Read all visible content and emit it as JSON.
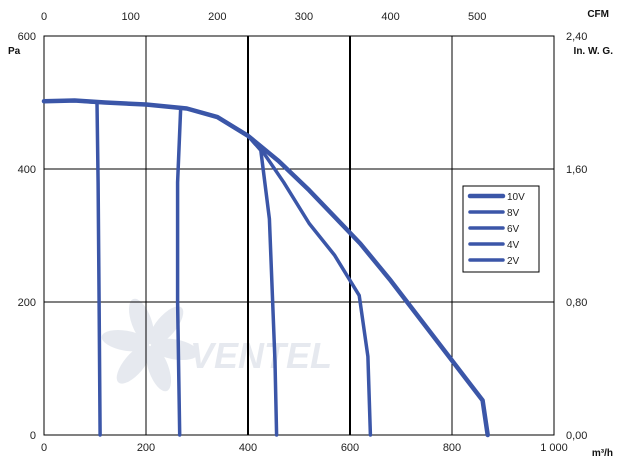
{
  "chart_data": {
    "type": "line",
    "units": {
      "x_bottom": "m³/h",
      "x_top": "CFM",
      "y_left": "Pa",
      "y_right": "In. W. G."
    },
    "watermark": "VENTEL",
    "x_bottom_ticks": [
      "0",
      "200",
      "400",
      "600",
      "800",
      "1 000"
    ],
    "x_top_ticks": [
      "0",
      "100",
      "200",
      "300",
      "400",
      "500"
    ],
    "y_left_ticks": [
      "0",
      "200",
      "400",
      "600"
    ],
    "y_right_ticks": [
      "0,00",
      "0,80",
      "1,60",
      "2,40"
    ],
    "xlim": [
      0,
      1000
    ],
    "ylim": [
      0,
      600
    ],
    "x_top_lim": [
      0,
      588.6
    ],
    "y_right_lim": [
      0,
      2.4
    ],
    "grid": true,
    "legend_placement": "right",
    "line_color": "#3b56a8",
    "series": [
      {
        "name": "10V",
        "points": [
          [
            0,
            502
          ],
          [
            60,
            503
          ],
          [
            120,
            500
          ],
          [
            200,
            497
          ],
          [
            280,
            491
          ],
          [
            340,
            478
          ],
          [
            400,
            450
          ],
          [
            460,
            412
          ],
          [
            520,
            368
          ],
          [
            580,
            320
          ],
          [
            620,
            288
          ],
          [
            680,
            232
          ],
          [
            740,
            172
          ],
          [
            800,
            112
          ],
          [
            860,
            52
          ],
          [
            870,
            0
          ]
        ]
      },
      {
        "name": "8V",
        "points": [
          [
            0,
            502
          ],
          [
            60,
            503
          ],
          [
            120,
            500
          ],
          [
            200,
            497
          ],
          [
            280,
            491
          ],
          [
            340,
            478
          ],
          [
            400,
            450
          ],
          [
            430,
            425
          ],
          [
            470,
            380
          ],
          [
            520,
            318
          ],
          [
            570,
            270
          ],
          [
            618,
            210
          ],
          [
            635,
            118
          ],
          [
            640,
            0
          ]
        ]
      },
      {
        "name": "6V",
        "points": [
          [
            0,
            502
          ],
          [
            60,
            503
          ],
          [
            120,
            500
          ],
          [
            200,
            497
          ],
          [
            280,
            491
          ],
          [
            340,
            478
          ],
          [
            400,
            450
          ],
          [
            425,
            428
          ],
          [
            442,
            325
          ],
          [
            453,
            110
          ],
          [
            456,
            0
          ]
        ]
      },
      {
        "name": "4V",
        "points": [
          [
            0,
            502
          ],
          [
            60,
            503
          ],
          [
            120,
            500
          ],
          [
            200,
            497
          ],
          [
            268,
            492
          ],
          [
            262,
            380
          ],
          [
            262,
            200
          ],
          [
            266,
            0
          ]
        ]
      },
      {
        "name": "2V",
        "points": [
          [
            0,
            502
          ],
          [
            60,
            503
          ],
          [
            104,
            500
          ],
          [
            106,
            380
          ],
          [
            108,
            200
          ],
          [
            110,
            0
          ]
        ]
      }
    ]
  }
}
